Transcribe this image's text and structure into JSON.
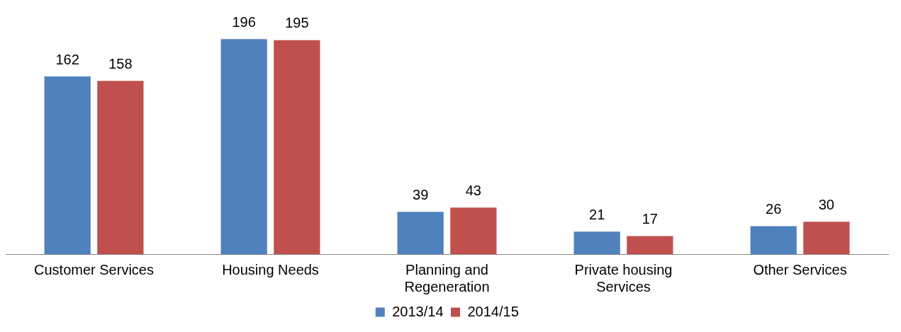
{
  "chart_data": {
    "type": "bar",
    "categories": [
      "Customer Services",
      "Housing Needs",
      "Planning and Regeneration",
      "Private housing Services",
      "Other Services"
    ],
    "series": [
      {
        "name": "2013/14",
        "color": "#4f81bd",
        "values": [
          162,
          196,
          39,
          21,
          26
        ]
      },
      {
        "name": "2014/15",
        "color": "#c0504d",
        "values": [
          158,
          195,
          43,
          17,
          30
        ]
      }
    ],
    "data_labels": true,
    "legend": "bottom",
    "grid": false
  }
}
